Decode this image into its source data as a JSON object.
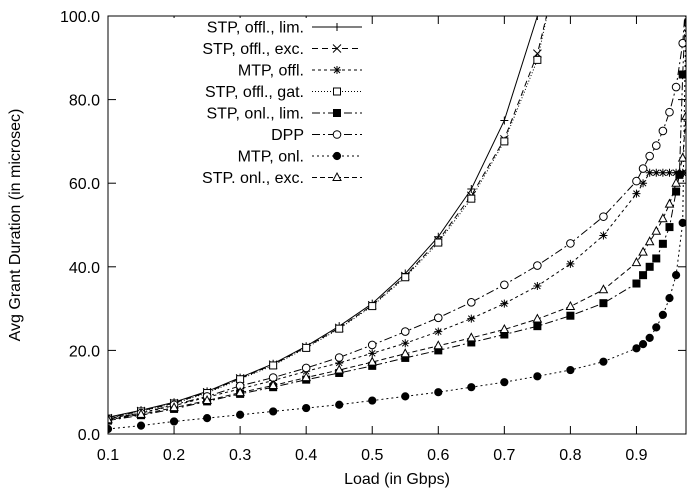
{
  "chart_data": {
    "type": "line",
    "title": "",
    "xlabel": "Load (in Gbps)",
    "ylabel": "Avg Grant Duration (in microsec)",
    "xlim": [
      0.1,
      0.975
    ],
    "ylim": [
      0,
      100
    ],
    "x_ticks": [
      "0.1",
      "0.2",
      "0.3",
      "0.4",
      "0.5",
      "0.6",
      "0.7",
      "0.8",
      "0.9"
    ],
    "x_tick_values": [
      0.1,
      0.2,
      0.3,
      0.4,
      0.5,
      0.6,
      0.7,
      0.8,
      0.9
    ],
    "y_ticks": [
      "0.0",
      "20.0",
      "40.0",
      "60.0",
      "80.0",
      "100.0"
    ],
    "y_tick_values": [
      0,
      20,
      40,
      60,
      80,
      100
    ],
    "grid": false,
    "legend_position": "top-left",
    "series": [
      {
        "name": "STP, offl., lim.",
        "marker": "plus",
        "dash": "solid",
        "x": [
          0.1,
          0.15,
          0.2,
          0.25,
          0.3,
          0.35,
          0.4,
          0.45,
          0.5,
          0.55,
          0.6,
          0.65,
          0.7,
          0.75,
          0.76
        ],
        "y": [
          4.0,
          5.7,
          7.6,
          10.2,
          13.5,
          16.8,
          21.0,
          25.8,
          31.2,
          38.4,
          47.2,
          58.6,
          75.0,
          100.0,
          104.0
        ]
      },
      {
        "name": "STP, offl., exc.",
        "marker": "x",
        "dash": "6,4",
        "x": [
          0.1,
          0.15,
          0.2,
          0.25,
          0.3,
          0.35,
          0.4,
          0.45,
          0.5,
          0.55,
          0.6,
          0.65,
          0.7,
          0.75,
          0.77
        ],
        "y": [
          3.8,
          5.5,
          7.4,
          10.0,
          13.3,
          16.6,
          20.8,
          25.4,
          30.8,
          37.8,
          46.3,
          57.0,
          70.5,
          91.0,
          104.0
        ]
      },
      {
        "name": "MTP, offl.",
        "marker": "asterisk",
        "dash": "3,3",
        "x": [
          0.1,
          0.15,
          0.2,
          0.25,
          0.3,
          0.35,
          0.4,
          0.45,
          0.5,
          0.55,
          0.6,
          0.65,
          0.7,
          0.75,
          0.8,
          0.85,
          0.9,
          0.91,
          0.92,
          0.93,
          0.94,
          0.95,
          0.96,
          0.97,
          0.975
        ],
        "y": [
          3.7,
          5.0,
          6.8,
          8.8,
          10.8,
          12.8,
          15.0,
          17.0,
          19.3,
          21.7,
          24.5,
          27.6,
          31.2,
          35.4,
          40.7,
          47.5,
          57.5,
          60.0,
          62.5,
          62.5,
          62.5,
          62.5,
          62.5,
          62.5,
          62.5
        ]
      },
      {
        "name": "STP, offl., gat.",
        "marker": "square-open",
        "dash": "1,2",
        "x": [
          0.1,
          0.15,
          0.2,
          0.25,
          0.3,
          0.35,
          0.4,
          0.45,
          0.5,
          0.55,
          0.6,
          0.65,
          0.7,
          0.75,
          0.77
        ],
        "y": [
          3.7,
          5.4,
          7.3,
          9.8,
          13.1,
          16.4,
          20.6,
          25.2,
          30.6,
          37.5,
          45.8,
          56.3,
          70.0,
          89.5,
          104.0
        ]
      },
      {
        "name": "STP, onl., lim.",
        "marker": "square-filled",
        "dash": "8,3,2,3",
        "x": [
          0.1,
          0.15,
          0.2,
          0.25,
          0.3,
          0.35,
          0.4,
          0.45,
          0.5,
          0.55,
          0.6,
          0.65,
          0.7,
          0.75,
          0.8,
          0.85,
          0.9,
          0.91,
          0.92,
          0.93,
          0.94,
          0.95,
          0.96,
          0.965,
          0.97,
          0.975
        ],
        "y": [
          3.2,
          4.5,
          6.0,
          7.8,
          9.6,
          11.2,
          13.0,
          14.6,
          16.3,
          18.2,
          20.0,
          21.9,
          23.8,
          25.8,
          28.3,
          31.3,
          36.0,
          38.0,
          40.0,
          42.0,
          45.5,
          49.5,
          58.0,
          62.0,
          86.0,
          104.0
        ]
      },
      {
        "name": "DPP",
        "marker": "circle-open",
        "dash": "8,3,2,3",
        "x": [
          0.1,
          0.15,
          0.2,
          0.25,
          0.3,
          0.35,
          0.4,
          0.45,
          0.5,
          0.55,
          0.6,
          0.65,
          0.7,
          0.75,
          0.8,
          0.85,
          0.9,
          0.91,
          0.92,
          0.93,
          0.94,
          0.95,
          0.96,
          0.97,
          0.975
        ],
        "y": [
          3.5,
          5.0,
          7.0,
          9.0,
          11.5,
          13.5,
          15.8,
          18.3,
          21.3,
          24.5,
          27.8,
          31.5,
          35.7,
          40.3,
          45.6,
          52.0,
          60.5,
          63.5,
          66.5,
          69.0,
          72.5,
          77.0,
          83.0,
          93.5,
          104.0
        ]
      },
      {
        "name": "MTP, onl.",
        "marker": "circle-filled",
        "dash": "2,3",
        "x": [
          0.1,
          0.15,
          0.2,
          0.25,
          0.3,
          0.35,
          0.4,
          0.45,
          0.5,
          0.55,
          0.6,
          0.65,
          0.7,
          0.75,
          0.8,
          0.85,
          0.9,
          0.91,
          0.92,
          0.93,
          0.94,
          0.95,
          0.96,
          0.97,
          0.975
        ],
        "y": [
          1.2,
          2.0,
          3.0,
          3.8,
          4.6,
          5.4,
          6.2,
          7.0,
          8.0,
          9.0,
          10.0,
          11.2,
          12.4,
          13.8,
          15.3,
          17.3,
          20.5,
          21.5,
          23.0,
          25.5,
          28.5,
          32.5,
          38.0,
          50.5,
          104.0
        ]
      },
      {
        "name": "STP. onl., exc.",
        "marker": "triangle-open",
        "dash": "5,3",
        "x": [
          0.1,
          0.15,
          0.2,
          0.25,
          0.3,
          0.35,
          0.4,
          0.45,
          0.5,
          0.55,
          0.6,
          0.65,
          0.7,
          0.75,
          0.8,
          0.85,
          0.9,
          0.91,
          0.92,
          0.93,
          0.94,
          0.95,
          0.96,
          0.97,
          0.975
        ],
        "y": [
          3.4,
          4.7,
          6.3,
          8.0,
          9.9,
          11.6,
          13.5,
          15.3,
          17.2,
          19.2,
          21.1,
          23.0,
          25.0,
          27.5,
          30.5,
          34.5,
          41.0,
          43.5,
          46.0,
          48.5,
          51.5,
          55.0,
          60.0,
          66.0,
          76.0
        ]
      }
    ]
  }
}
